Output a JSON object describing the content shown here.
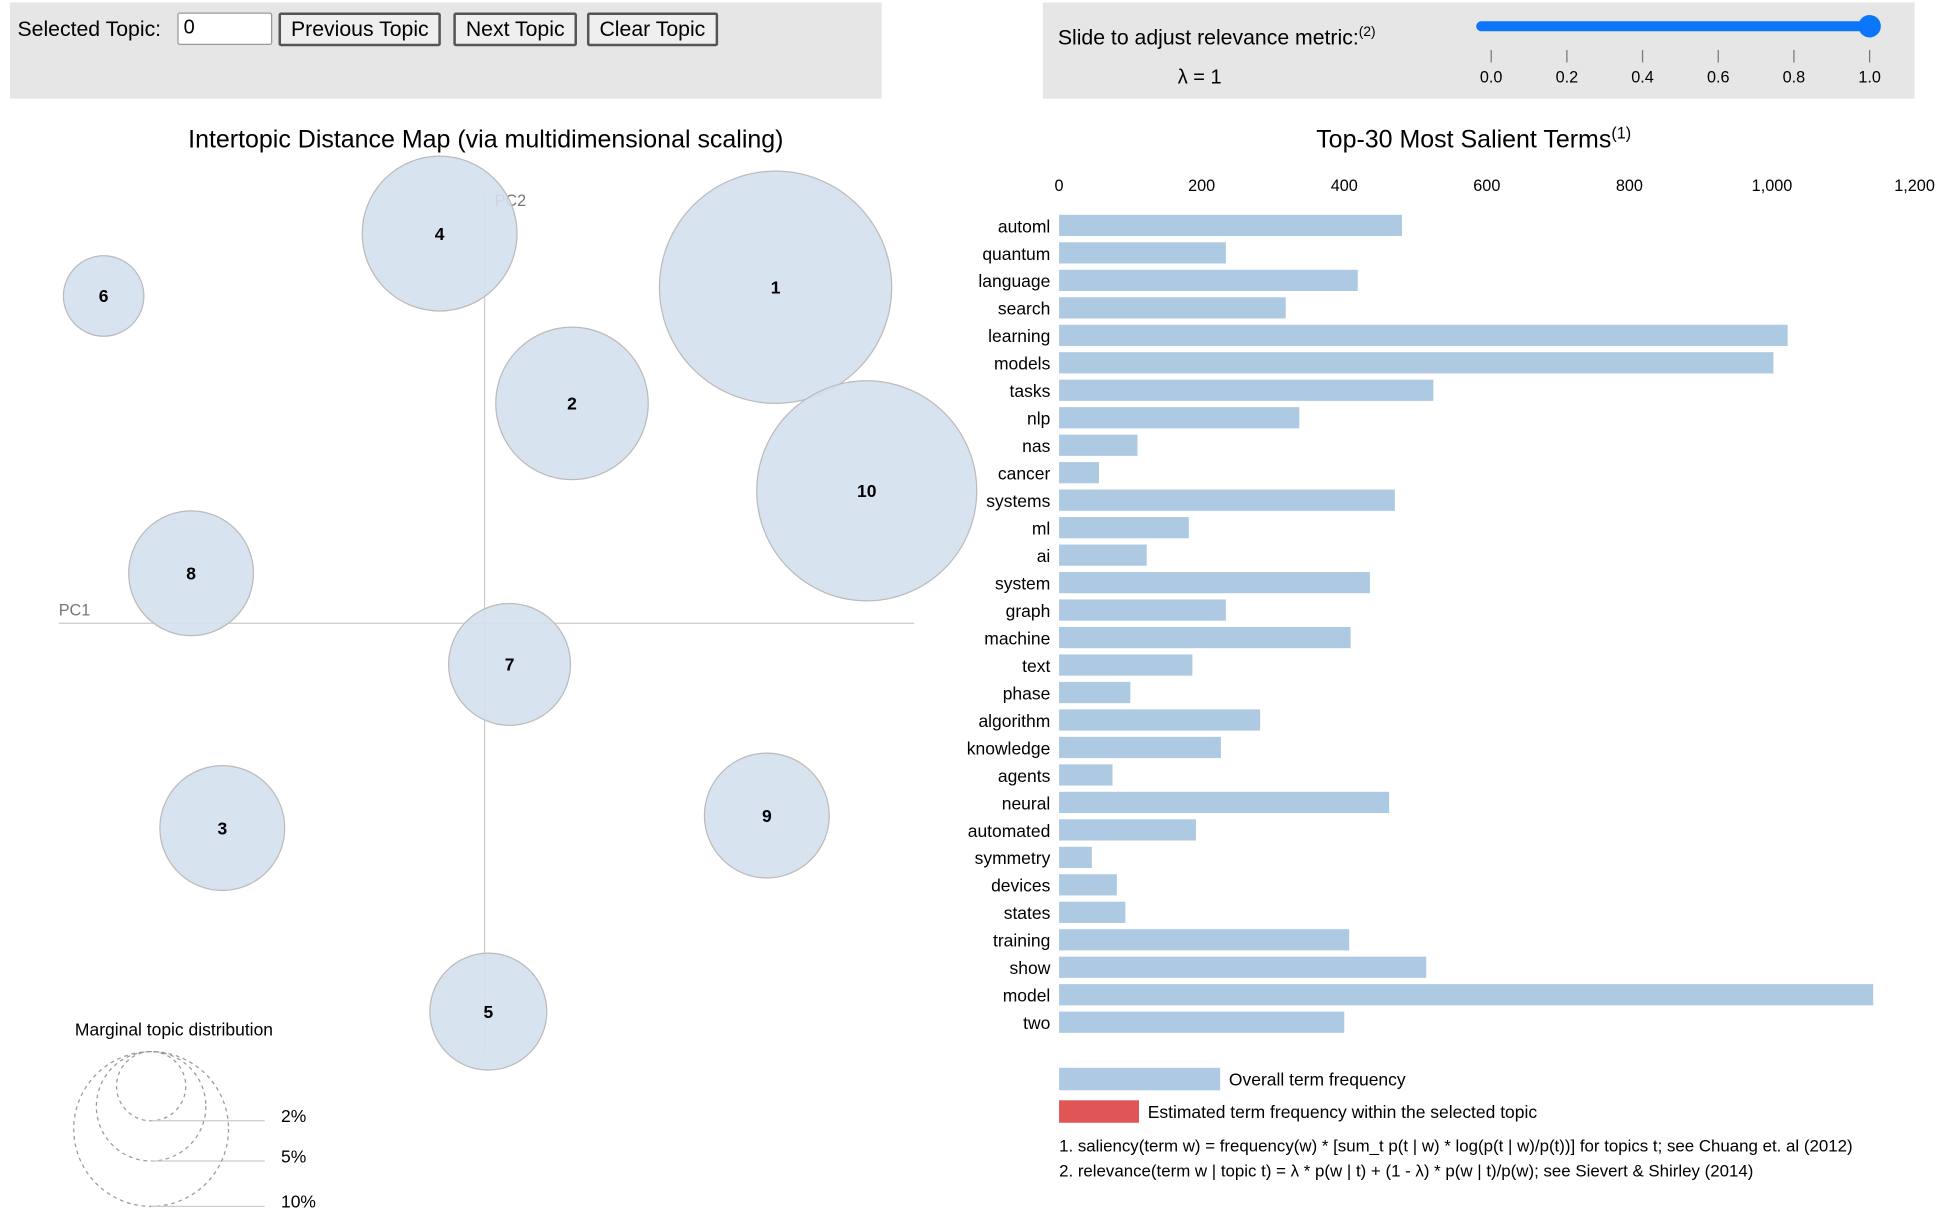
{
  "controls": {
    "selected_topic_label": "Selected Topic:",
    "selected_topic_value": "0",
    "previous_label": "Previous Topic",
    "next_label": "Next Topic",
    "clear_label": "Clear Topic"
  },
  "slider": {
    "label": "Slide to adjust relevance metric:",
    "label_sup": "(2)",
    "lambda_text": "λ = 1",
    "value": 1.0,
    "min": 0,
    "max": 1,
    "ticks": [
      "0.0",
      "0.2",
      "0.4",
      "0.6",
      "0.8",
      "1.0"
    ],
    "color": "#0b76fa"
  },
  "chart_data": [
    {
      "type": "scatter",
      "title": "Intertopic Distance Map (via multidimensional scaling)",
      "xlabel": "PC1",
      "ylabel": "PC2",
      "bubble_color": "#d4e0ee",
      "topics": [
        {
          "id": "1",
          "pc1": 0.233,
          "pc2": 0.269,
          "marginal_pct": 22.5
        },
        {
          "id": "2",
          "pc1": 0.07,
          "pc2": 0.176,
          "marginal_pct": 9.7
        },
        {
          "id": "3",
          "pc1": -0.21,
          "pc2": -0.164,
          "marginal_pct": 6.5
        },
        {
          "id": "4",
          "pc1": -0.036,
          "pc2": 0.312,
          "marginal_pct": 10.0
        },
        {
          "id": "5",
          "pc1": 0.003,
          "pc2": -0.311,
          "marginal_pct": 5.7
        },
        {
          "id": "6",
          "pc1": -0.305,
          "pc2": 0.262,
          "marginal_pct": 2.7
        },
        {
          "id": "7",
          "pc1": 0.02,
          "pc2": -0.033,
          "marginal_pct": 6.2
        },
        {
          "id": "8",
          "pc1": -0.235,
          "pc2": 0.04,
          "marginal_pct": 6.5
        },
        {
          "id": "9",
          "pc1": 0.226,
          "pc2": -0.154,
          "marginal_pct": 6.5
        },
        {
          "id": "10",
          "pc1": 0.306,
          "pc2": 0.106,
          "marginal_pct": 20.2
        }
      ],
      "legend": {
        "title": "Marginal topic distribution",
        "sizes": [
          {
            "pct": 2,
            "label": "2%"
          },
          {
            "pct": 5,
            "label": "5%"
          },
          {
            "pct": 10,
            "label": "10%"
          }
        ]
      }
    },
    {
      "type": "bar",
      "title": "Top-30 Most Salient Terms",
      "title_sup": "(1)",
      "xlim": [
        0,
        1200
      ],
      "xticks": [
        0,
        200,
        400,
        600,
        800,
        1000,
        1200
      ],
      "xtick_labels": [
        "0",
        "200",
        "400",
        "600",
        "800",
        "1,000",
        "1,200"
      ],
      "categories": [
        "automl",
        "quantum",
        "language",
        "search",
        "learning",
        "models",
        "tasks",
        "nlp",
        "nas",
        "cancer",
        "systems",
        "ml",
        "ai",
        "system",
        "graph",
        "machine",
        "text",
        "phase",
        "algorithm",
        "knowledge",
        "agents",
        "neural",
        "automated",
        "symmetry",
        "devices",
        "states",
        "training",
        "show",
        "model",
        "two"
      ],
      "series": [
        {
          "name": "Overall term frequency",
          "color": "#aecae3",
          "values": [
            481,
            234,
            419,
            318,
            1022,
            1002,
            525,
            337,
            110,
            56,
            471,
            182,
            123,
            436,
            234,
            409,
            187,
            100,
            282,
            227,
            75,
            463,
            192,
            46,
            81,
            93,
            407,
            515,
            1142,
            400
          ]
        }
      ],
      "legend": [
        {
          "label": "Overall term frequency",
          "color": "#aecae3"
        },
        {
          "label": "Estimated term frequency within the selected topic",
          "color": "#e05555"
        }
      ]
    }
  ],
  "footnotes": [
    "1. saliency(term w) = frequency(w) * [sum_t p(t | w) * log(p(t | w)/p(t))] for topics t; see Chuang et. al (2012)",
    "2. relevance(term w | topic t) = λ * p(w | t) + (1 - λ) * p(w | t)/p(w); see Sievert & Shirley (2014)"
  ]
}
